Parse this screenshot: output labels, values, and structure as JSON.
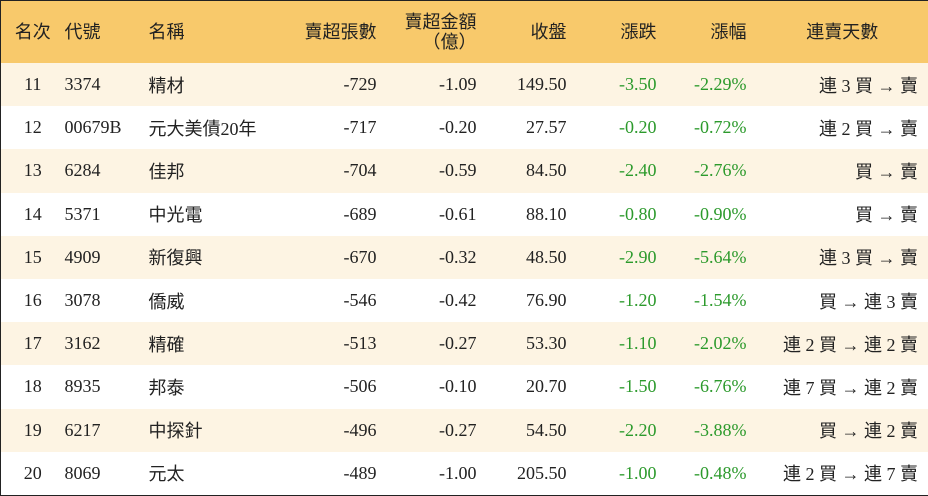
{
  "table": {
    "header": [
      "名次",
      "代號",
      "名稱",
      "賣超張數",
      {
        "label": "賣超金額",
        "unit": "（億）"
      },
      "收盤",
      "漲跌",
      "漲幅",
      "連賣天數"
    ],
    "rows": [
      [
        "11",
        "3374",
        "精材",
        "-729",
        "-1.09",
        "149.50",
        "-3.50",
        "-2.29%",
        "連 3 買 → 賣"
      ],
      [
        "12",
        "00679B",
        "元大美債20年",
        "-717",
        "-0.20",
        "27.57",
        "-0.20",
        "-0.72%",
        "連 2 買 → 賣"
      ],
      [
        "13",
        "6284",
        "佳邦",
        "-704",
        "-0.59",
        "84.50",
        "-2.40",
        "-2.76%",
        "買 → 賣"
      ],
      [
        "14",
        "5371",
        "中光電",
        "-689",
        "-0.61",
        "88.10",
        "-0.80",
        "-0.90%",
        "買 → 賣"
      ],
      [
        "15",
        "4909",
        "新復興",
        "-670",
        "-0.32",
        "48.50",
        "-2.90",
        "-5.64%",
        "連 3 買 → 賣"
      ],
      [
        "16",
        "3078",
        "僑威",
        "-546",
        "-0.42",
        "76.90",
        "-1.20",
        "-1.54%",
        "買 → 連 3 賣"
      ],
      [
        "17",
        "3162",
        "精確",
        "-513",
        "-0.27",
        "53.30",
        "-1.10",
        "-2.02%",
        "連 2 買 → 連 2 賣"
      ],
      [
        "18",
        "8935",
        "邦泰",
        "-506",
        "-0.10",
        "20.70",
        "-1.50",
        "-6.76%",
        "連 7 買 → 連 2 賣"
      ],
      [
        "19",
        "6217",
        "中探針",
        "-496",
        "-0.27",
        "54.50",
        "-2.20",
        "-3.88%",
        "買 → 連 2 賣"
      ],
      [
        "20",
        "8069",
        "元太",
        "-489",
        "-1.00",
        "205.50",
        "-1.00",
        "-0.48%",
        "連 2 買 → 連 7 賣"
      ]
    ]
  }
}
